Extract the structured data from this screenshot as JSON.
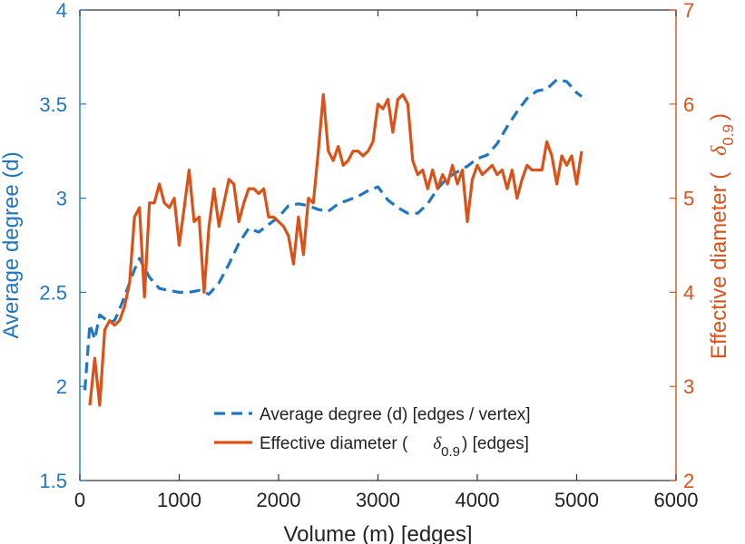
{
  "chart_data": {
    "type": "line",
    "title": "",
    "xlabel": "Volume (m) [edges]",
    "ylabel": "Average degree (d)",
    "y2label_prefix": "Effective diameter (",
    "y2label_symbol": "δ",
    "y2label_sub": "0.9",
    "y2label_suffix": ")",
    "xlim": [
      0,
      6000
    ],
    "ylim": [
      1.5,
      4
    ],
    "y2lim": [
      2,
      7
    ],
    "xticks": [
      "0",
      "1000",
      "2000",
      "3000",
      "4000",
      "5000",
      "6000"
    ],
    "yticks": [
      "1.5",
      "2",
      "2.5",
      "3",
      "3.5",
      "4"
    ],
    "y2ticks": [
      "2",
      "3",
      "4",
      "5",
      "6",
      "7"
    ],
    "colors": {
      "left": "#1f77c4",
      "right": "#d95319",
      "axis": "#333333"
    },
    "legend": {
      "placement": "bottom-right",
      "entries": [
        {
          "label": "Average degree (d) [edges / vertex]"
        },
        {
          "label_prefix": "Effective diameter (",
          "symbol": "δ",
          "sub": "0.9",
          "label_suffix": ") [edges]"
        }
      ]
    },
    "series": [
      {
        "name": "Average degree (d) [edges / vertex]",
        "axis": "left",
        "style": "dashed",
        "x": [
          50,
          100,
          150,
          200,
          250,
          300,
          350,
          400,
          450,
          500,
          550,
          600,
          650,
          700,
          800,
          900,
          1000,
          1100,
          1200,
          1250,
          1300,
          1400,
          1500,
          1600,
          1700,
          1800,
          1900,
          2000,
          2100,
          2200,
          2300,
          2400,
          2500,
          2600,
          2700,
          2800,
          2900,
          3000,
          3100,
          3200,
          3300,
          3400,
          3500,
          3600,
          3700,
          3800,
          3900,
          4000,
          4100,
          4200,
          4300,
          4400,
          4500,
          4600,
          4700,
          4800,
          4900,
          5000,
          5050
        ],
        "y": [
          1.98,
          2.33,
          2.25,
          2.38,
          2.36,
          2.34,
          2.35,
          2.41,
          2.48,
          2.55,
          2.62,
          2.68,
          2.63,
          2.58,
          2.52,
          2.51,
          2.5,
          2.5,
          2.51,
          2.5,
          2.49,
          2.55,
          2.65,
          2.76,
          2.84,
          2.82,
          2.86,
          2.9,
          2.96,
          2.97,
          2.96,
          2.94,
          2.93,
          2.97,
          2.99,
          3.01,
          3.04,
          3.06,
          2.99,
          2.95,
          2.92,
          2.92,
          2.97,
          3.05,
          3.11,
          3.14,
          3.17,
          3.21,
          3.23,
          3.29,
          3.38,
          3.46,
          3.53,
          3.57,
          3.58,
          3.63,
          3.62,
          3.56,
          3.54
        ]
      },
      {
        "name": "Effective diameter (δ0.9) [edges]",
        "axis": "right",
        "style": "solid",
        "x": [
          100,
          150,
          200,
          250,
          300,
          350,
          400,
          450,
          500,
          550,
          600,
          650,
          700,
          750,
          800,
          850,
          900,
          950,
          1000,
          1050,
          1100,
          1150,
          1200,
          1250,
          1300,
          1350,
          1400,
          1450,
          1500,
          1550,
          1600,
          1650,
          1700,
          1750,
          1800,
          1850,
          1900,
          1950,
          2000,
          2050,
          2100,
          2150,
          2200,
          2250,
          2300,
          2350,
          2400,
          2450,
          2500,
          2550,
          2600,
          2650,
          2700,
          2750,
          2800,
          2850,
          2900,
          2950,
          3000,
          3050,
          3100,
          3150,
          3200,
          3250,
          3300,
          3350,
          3400,
          3450,
          3500,
          3550,
          3600,
          3650,
          3700,
          3750,
          3800,
          3850,
          3900,
          3950,
          4000,
          4050,
          4100,
          4150,
          4200,
          4250,
          4300,
          4350,
          4400,
          4450,
          4500,
          4550,
          4600,
          4650,
          4700,
          4750,
          4800,
          4850,
          4900,
          4950,
          5000,
          5050
        ],
        "y": [
          2.8,
          3.3,
          2.8,
          3.6,
          3.7,
          3.65,
          3.7,
          3.85,
          4.1,
          4.8,
          4.9,
          3.95,
          4.95,
          4.95,
          5.15,
          4.95,
          4.9,
          5.0,
          4.5,
          4.9,
          5.3,
          4.75,
          4.8,
          4.0,
          4.7,
          5.1,
          4.7,
          4.95,
          5.2,
          5.15,
          4.75,
          4.95,
          5.1,
          5.1,
          5.05,
          5.1,
          4.8,
          4.8,
          4.75,
          4.7,
          4.6,
          4.3,
          4.8,
          4.4,
          5.0,
          4.95,
          5.5,
          6.1,
          5.5,
          5.4,
          5.55,
          5.35,
          5.4,
          5.5,
          5.5,
          5.45,
          5.5,
          5.6,
          6.0,
          5.95,
          6.05,
          5.7,
          6.05,
          6.1,
          6.0,
          5.4,
          5.25,
          5.3,
          5.1,
          5.3,
          5.1,
          5.25,
          5.15,
          5.35,
          5.15,
          5.3,
          4.75,
          5.2,
          5.35,
          5.25,
          5.3,
          5.35,
          5.25,
          5.3,
          5.1,
          5.3,
          5.0,
          5.2,
          5.35,
          5.3,
          5.3,
          5.3,
          5.6,
          5.45,
          5.15,
          5.45,
          5.35,
          5.45,
          5.15,
          5.5
        ]
      }
    ]
  }
}
